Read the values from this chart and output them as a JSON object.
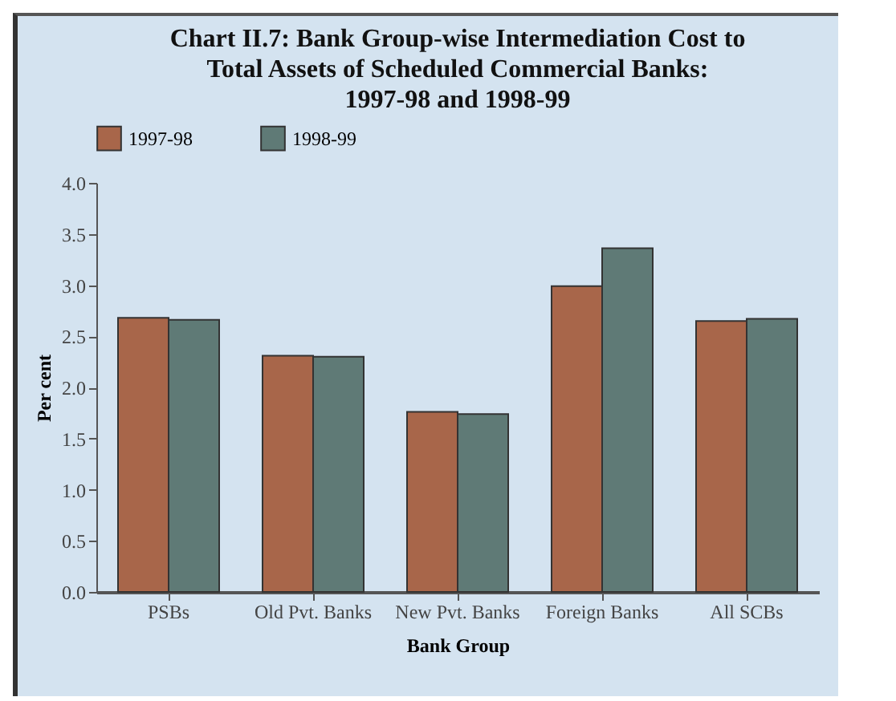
{
  "chart_data": {
    "type": "bar",
    "title": "Chart II.7: Bank Group-wise Intermediation Cost to Total Assets of Scheduled Commercial Banks: 1997-98 and 1998-99",
    "xlabel": "Bank Group",
    "ylabel": "Per cent",
    "categories": [
      "PSBs",
      "Old Pvt. Banks",
      "New Pvt. Banks",
      "Foreign Banks",
      "All SCBs"
    ],
    "series": [
      {
        "name": "1997-98",
        "color": "#a8664a",
        "values": [
          2.68,
          2.31,
          1.76,
          2.99,
          2.65
        ]
      },
      {
        "name": "1998-99",
        "color": "#5f7a76",
        "values": [
          2.66,
          2.3,
          1.74,
          3.36,
          2.67
        ]
      }
    ],
    "ylim": [
      0,
      4
    ],
    "yticks": [
      {
        "value": 0,
        "label": "0.0"
      },
      {
        "value": 0.5,
        "label": "0.5"
      },
      {
        "value": 1,
        "label": "1.0"
      },
      {
        "value": 1.5,
        "label": "1.5"
      },
      {
        "value": 2,
        "label": "2.0"
      },
      {
        "value": 2.5,
        "label": "2.5"
      },
      {
        "value": 3,
        "label": "3.0"
      },
      {
        "value": 3.5,
        "label": "3.5"
      },
      {
        "value": 4,
        "label": "4.0"
      }
    ],
    "legend": "top",
    "grid": false
  }
}
